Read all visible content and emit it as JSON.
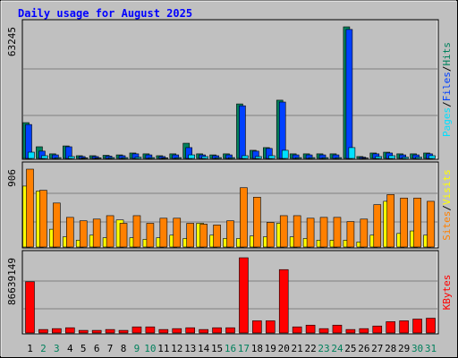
{
  "chart_data": [
    {
      "type": "bar",
      "title": "Daily usage for August 2025",
      "legend_separator": "/",
      "ylim": [
        0,
        63245
      ],
      "yticks": [
        63245
      ],
      "series": [
        {
          "name": "Pages",
          "color": "#00e0ff",
          "values": [
            3000,
            1300,
            400,
            900,
            300,
            300,
            400,
            400,
            600,
            400,
            300,
            400,
            1700,
            900,
            400,
            400,
            1300,
            900,
            1300,
            3900,
            400,
            400,
            400,
            400,
            5200,
            200,
            900,
            1300,
            600,
            600,
            1300
          ]
        },
        {
          "name": "Files",
          "color": "#0040ff",
          "values": [
            16300,
            3500,
            1700,
            5600,
            900,
            900,
            1100,
            1300,
            2200,
            1700,
            900,
            1700,
            5200,
            1700,
            1300,
            1700,
            25300,
            3500,
            4800,
            27100,
            1700,
            1700,
            1700,
            1700,
            62000,
            600,
            2200,
            2600,
            1700,
            1700,
            2200
          ]
        },
        {
          "name": "Hits",
          "color": "#00805c",
          "values": [
            17200,
            5600,
            2200,
            6000,
            1300,
            1300,
            1500,
            1700,
            2600,
            2200,
            1300,
            2200,
            7300,
            2200,
            1700,
            2200,
            26200,
            3900,
            5200,
            28000,
            2200,
            2200,
            2200,
            2200,
            63245,
            900,
            2600,
            3000,
            2200,
            2200,
            2600
          ]
        }
      ]
    },
    {
      "type": "bar",
      "ylim": [
        0,
        906
      ],
      "yticks": [
        906
      ],
      "series": [
        {
          "name": "Sites",
          "color": "#ff8000",
          "values": [
            906,
            660,
            512,
            345,
            305,
            325,
            365,
            276,
            365,
            276,
            335,
            335,
            276,
            266,
            256,
            305,
            690,
            580,
            286,
            365,
            365,
            335,
            345,
            345,
            296,
            325,
            493,
            610,
            570,
            570,
            532
          ]
        },
        {
          "name": "Visits",
          "color": "#ffff00",
          "values": [
            709,
            650,
            207,
            118,
            79,
            138,
            108,
            315,
            108,
            89,
            108,
            138,
            99,
            276,
            138,
            99,
            99,
            128,
            118,
            276,
            118,
            99,
            79,
            79,
            79,
            59,
            138,
            532,
            158,
            187,
            138
          ]
        }
      ]
    },
    {
      "type": "bar",
      "ylim": [
        0,
        86639149
      ],
      "yticks": [
        86639149
      ],
      "categories": [
        "1",
        "2",
        "3",
        "4",
        "5",
        "6",
        "7",
        "8",
        "9",
        "10",
        "11",
        "12",
        "13",
        "14",
        "15",
        "16",
        "17",
        "18",
        "19",
        "20",
        "21",
        "22",
        "23",
        "24",
        "25",
        "26",
        "27",
        "28",
        "29",
        "30",
        "31"
      ],
      "weekend_color": "#00805c",
      "weekend": [
        false,
        true,
        true,
        false,
        false,
        false,
        false,
        false,
        true,
        true,
        false,
        false,
        false,
        false,
        false,
        true,
        true,
        false,
        false,
        false,
        false,
        false,
        true,
        true,
        false,
        false,
        false,
        false,
        false,
        true,
        true
      ],
      "series": [
        {
          "name": "KBytes",
          "color": "#ff0000",
          "values": [
            59000000,
            4000000,
            5000000,
            6000000,
            3000000,
            3000000,
            4000000,
            3000000,
            7000000,
            7000000,
            4000000,
            5000000,
            6000000,
            4000000,
            6000000,
            6000000,
            86639149,
            14000000,
            14000000,
            73000000,
            7000000,
            9000000,
            5000000,
            9000000,
            4000000,
            5000000,
            8000000,
            13000000,
            14000000,
            16000000,
            17000000
          ]
        }
      ]
    }
  ]
}
